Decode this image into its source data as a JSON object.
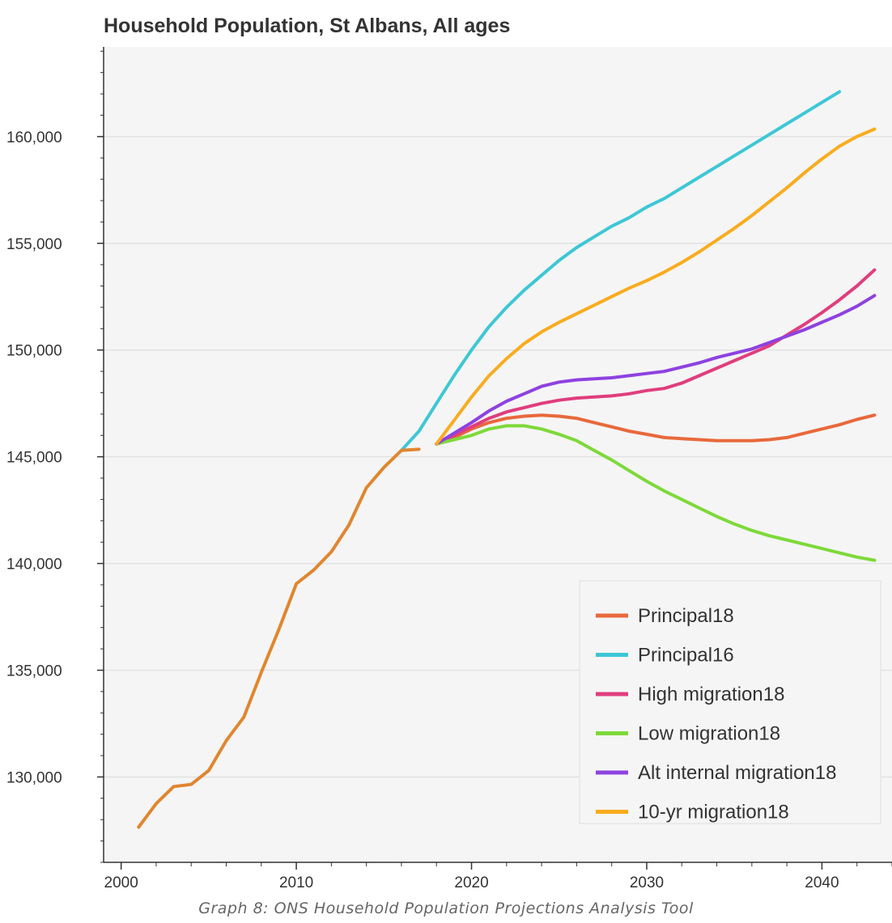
{
  "chart_data": {
    "type": "line",
    "title": "Household Population, St Albans, All ages",
    "xlabel": "",
    "ylabel": "",
    "xlim": [
      1999,
      2044
    ],
    "ylim": [
      126000,
      164200
    ],
    "x_ticks": [
      2000,
      2010,
      2020,
      2030,
      2040
    ],
    "x_tick_labels": [
      "2000",
      "2010",
      "2020",
      "2030",
      "2040"
    ],
    "y_ticks": [
      130000,
      135000,
      140000,
      145000,
      150000,
      155000,
      160000
    ],
    "y_tick_labels": [
      "130,000",
      "135,000",
      "140,000",
      "145,000",
      "150,000",
      "155,000",
      "160,000"
    ],
    "grid": "horizontal",
    "legend_position": "bottom-right",
    "historical": {
      "color": "#e0862f",
      "x": [
        2001,
        2002,
        2003,
        2004,
        2005,
        2006,
        2007,
        2008,
        2009,
        2010,
        2011,
        2012,
        2013,
        2014,
        2015,
        2016,
        2017
      ],
      "values": [
        127650,
        128750,
        129550,
        129650,
        130300,
        131700,
        132800,
        134900,
        136900,
        139050,
        139700,
        140550,
        141800,
        143550,
        144500,
        145300,
        145350
      ]
    },
    "series": [
      {
        "name": "Principal18",
        "color": "#e8693c",
        "x": [
          2018,
          2019,
          2020,
          2021,
          2022,
          2023,
          2024,
          2025,
          2026,
          2027,
          2028,
          2029,
          2030,
          2031,
          2032,
          2033,
          2034,
          2035,
          2036,
          2037,
          2038,
          2039,
          2040,
          2041,
          2042,
          2043
        ],
        "values": [
          145600,
          145900,
          146300,
          146600,
          146800,
          146900,
          146950,
          146900,
          146800,
          146600,
          146400,
          146200,
          146050,
          145900,
          145850,
          145800,
          145750,
          145750,
          145750,
          145800,
          145900,
          146100,
          146300,
          146500,
          146750,
          146950
        ]
      },
      {
        "name": "Principal16",
        "color": "#3ec7d6",
        "x": [
          2016,
          2017,
          2018,
          2019,
          2020,
          2021,
          2022,
          2023,
          2024,
          2025,
          2026,
          2027,
          2028,
          2029,
          2030,
          2031,
          2032,
          2033,
          2034,
          2035,
          2036,
          2037,
          2038,
          2039,
          2040,
          2041
        ],
        "values": [
          145300,
          146200,
          147500,
          148800,
          150000,
          151100,
          152000,
          152800,
          153500,
          154200,
          154800,
          155300,
          155800,
          156200,
          156700,
          157100,
          157600,
          158100,
          158600,
          159100,
          159600,
          160100,
          160600,
          161100,
          161600,
          162100
        ]
      },
      {
        "name": "High migration18",
        "color": "#e03e7e",
        "x": [
          2018,
          2019,
          2020,
          2021,
          2022,
          2023,
          2024,
          2025,
          2026,
          2027,
          2028,
          2029,
          2030,
          2031,
          2032,
          2033,
          2034,
          2035,
          2036,
          2037,
          2038,
          2039,
          2040,
          2041,
          2042,
          2043
        ],
        "values": [
          145600,
          146000,
          146400,
          146800,
          147100,
          147300,
          147500,
          147650,
          147750,
          147800,
          147850,
          147950,
          148100,
          148200,
          148450,
          148800,
          149150,
          149500,
          149850,
          150200,
          150700,
          151200,
          151750,
          152350,
          153000,
          153750
        ]
      },
      {
        "name": "Low migration18",
        "color": "#7ed93a",
        "x": [
          2018,
          2019,
          2020,
          2021,
          2022,
          2023,
          2024,
          2025,
          2026,
          2027,
          2028,
          2029,
          2030,
          2031,
          2032,
          2033,
          2034,
          2035,
          2036,
          2037,
          2038,
          2039,
          2040,
          2041,
          2042,
          2043
        ],
        "values": [
          145600,
          145800,
          146000,
          146300,
          146450,
          146450,
          146300,
          146050,
          145750,
          145300,
          144850,
          144350,
          143850,
          143400,
          143000,
          142600,
          142200,
          141850,
          141550,
          141300,
          141100,
          140900,
          140700,
          140500,
          140300,
          140150
        ]
      },
      {
        "name": "Alt internal migration18",
        "color": "#8e42e0",
        "x": [
          2018,
          2019,
          2020,
          2021,
          2022,
          2023,
          2024,
          2025,
          2026,
          2027,
          2028,
          2029,
          2030,
          2031,
          2032,
          2033,
          2034,
          2035,
          2036,
          2037,
          2038,
          2039,
          2040,
          2041,
          2042,
          2043
        ],
        "values": [
          145600,
          146100,
          146600,
          147150,
          147600,
          147950,
          148300,
          148500,
          148600,
          148650,
          148700,
          148800,
          148900,
          149000,
          149200,
          149400,
          149650,
          149850,
          150050,
          150350,
          150650,
          150950,
          151300,
          151650,
          152050,
          152550
        ]
      },
      {
        "name": "10-yr migration18",
        "color": "#f9ac1e",
        "x": [
          2018,
          2019,
          2020,
          2021,
          2022,
          2023,
          2024,
          2025,
          2026,
          2027,
          2028,
          2029,
          2030,
          2031,
          2032,
          2033,
          2034,
          2035,
          2036,
          2037,
          2038,
          2039,
          2040,
          2041,
          2042,
          2043
        ],
        "values": [
          145600,
          146700,
          147800,
          148800,
          149600,
          150300,
          150850,
          151300,
          151700,
          152100,
          152500,
          152900,
          153250,
          153650,
          154100,
          154600,
          155150,
          155700,
          156300,
          156950,
          157600,
          158300,
          158950,
          159550,
          160000,
          160350
        ]
      }
    ]
  },
  "caption": "Graph 8: ONS Household Population Projections Analysis Tool"
}
